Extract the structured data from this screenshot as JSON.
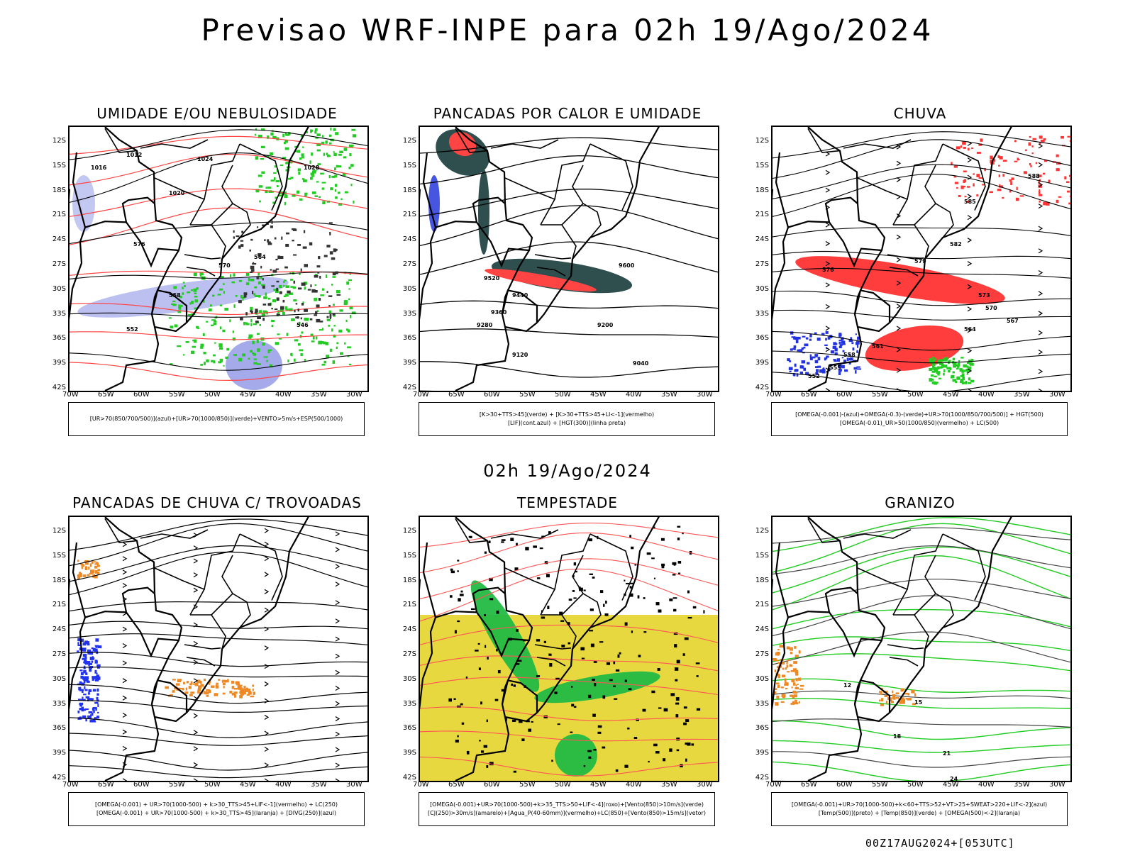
{
  "title": "Previsao WRF-INPE  para 02h 19/Ago/2024",
  "subtitle": "02h 19/Ago/2024",
  "footer": "00Z17AUG2024+[053UTC]",
  "lat_ticks": [
    "12S",
    "15S",
    "18S",
    "21S",
    "24S",
    "27S",
    "30S",
    "33S",
    "36S",
    "39S",
    "42S"
  ],
  "lon_ticks": [
    "70W",
    "65W",
    "60W",
    "55W",
    "50W",
    "45W",
    "40W",
    "35W",
    "30W"
  ],
  "panels": [
    {
      "id": "umidade",
      "title": "UMIDADE E/OU NEBULOSIDADE",
      "legend": [
        "[UR>70(850/700/500)](azul)+[UR>70(1000/850)](verde)+VENTO>5m/s+ESP(500/1000)"
      ],
      "labels": [
        "1012",
        "1016",
        "1020",
        "1024",
        "1028",
        "576",
        "570",
        "564",
        "558",
        "552",
        "546"
      ]
    },
    {
      "id": "pancadas-calor",
      "title": "PANCADAS POR CALOR E UMIDADE",
      "legend": [
        "[K>30+TTS>45](verde) + [K>30+TTS>45+LI<-1](vermelho)",
        "[LIF](cont.azul) + [HGT(300)](linha preta)"
      ],
      "labels": [
        "9600",
        "9520",
        "9440",
        "9360",
        "9280",
        "9200",
        "9120",
        "9040"
      ]
    },
    {
      "id": "chuva",
      "title": "CHUVA",
      "legend": [
        "[OMEGA(-0.001)-(azul)+OMEGA(-0.3)-(verde)+UR>70(1000/850/700/500)] + HGT(500)",
        "[OMEGA(-0.01)_UR>50(1000/850)(vermelho) + LC(500)"
      ],
      "labels": [
        "588",
        "585",
        "582",
        "579",
        "576",
        "573",
        "570",
        "567",
        "564",
        "561",
        "558",
        "555",
        "552"
      ]
    },
    {
      "id": "trovoadas",
      "title": "PANCADAS DE CHUVA C/ TROVOADAS",
      "legend": [
        "[OMEGA(-0.001) + UR>70(1000-500) + k>30_TTS>45+LIF<-1](vermelho) + LC(250)",
        "[OMEGA(-0.001) + UR>70(1000-500) + k>30_TTS>45](laranja) + [DIVG(250)](azul)"
      ],
      "labels": []
    },
    {
      "id": "tempestade",
      "title": "TEMPESTADE",
      "legend": [
        "[OMEGA(-0.001)+UR>70(1000-500)+k>35_TTS>50+LIF<-4](roxo)+[Vento(850)>10m/s](verde)",
        "[CJ(250)>30m/s](amarelo)+[Agua_P(40-60mm)](vermelho)+LC(850)+[Vento(850)>15m/s](vetor)"
      ],
      "labels": []
    },
    {
      "id": "granizo",
      "title": "GRANIZO",
      "legend": [
        "[OMEGA(-0.001)+UR>70(1000-500)+k<60+TTS>52+VT>25+SWEAT>220+LIF<-2](azul)",
        "[Temp(500)](preto) + [Temp(850)](verde) + [OMEGA(500)<-2](laranja)"
      ],
      "labels": [
        "12",
        "15",
        "18",
        "21",
        "24"
      ]
    }
  ]
}
